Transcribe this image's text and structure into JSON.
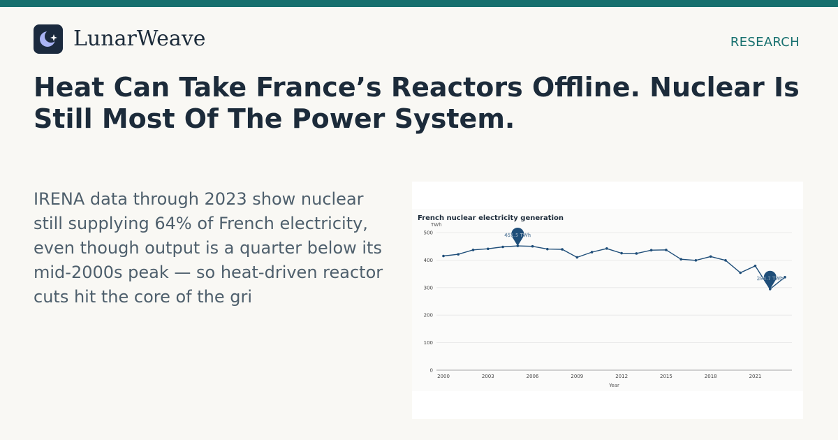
{
  "brand": {
    "name": "LunarWeave",
    "logo_icon": "moon-sparkle-icon"
  },
  "header": {
    "section_label": "RESEARCH"
  },
  "article": {
    "headline": "Heat Can Take France’s Reactors Offline. Nuclear Is Still Most Of The Power System.",
    "dek": "IRENA data through 2023 show nuclear still supplying 64% of French electricity, even though output is a quarter below its mid-2000s peak — so heat-driven reactor cuts hit the core of the gri"
  },
  "colors": {
    "accent": "#17706e",
    "line": "#1f4e79",
    "text_dark": "#1c2b3a",
    "text_muted": "#4e5f6c"
  },
  "chart_data": {
    "type": "line",
    "title": "French nuclear electricity generation",
    "ylabel": "TWh",
    "xlabel": "Year",
    "ylim": [
      0,
      500
    ],
    "yticks": [
      0,
      100,
      200,
      300,
      400,
      500
    ],
    "xticks": [
      2000,
      2003,
      2006,
      2009,
      2012,
      2015,
      2018,
      2021
    ],
    "grid": true,
    "series": [
      {
        "x": [
          2000,
          2001,
          2002,
          2003,
          2004,
          2005,
          2006,
          2007,
          2008,
          2009,
          2010,
          2011,
          2012,
          2013,
          2014,
          2015,
          2016,
          2017,
          2018,
          2019,
          2020,
          2021,
          2022,
          2023
        ],
        "values": [
          415,
          421,
          437,
          441,
          448,
          451.5,
          450,
          440,
          439,
          410,
          429,
          442,
          425,
          424,
          436,
          437,
          403,
          399,
          413,
          399,
          354,
          379,
          294.7,
          338
        ]
      }
    ],
    "annotations": [
      {
        "x": 2005,
        "y": 451.5,
        "label": "451.5 TWh"
      },
      {
        "x": 2022,
        "y": 294.7,
        "label": "294.7 TWh"
      }
    ]
  }
}
